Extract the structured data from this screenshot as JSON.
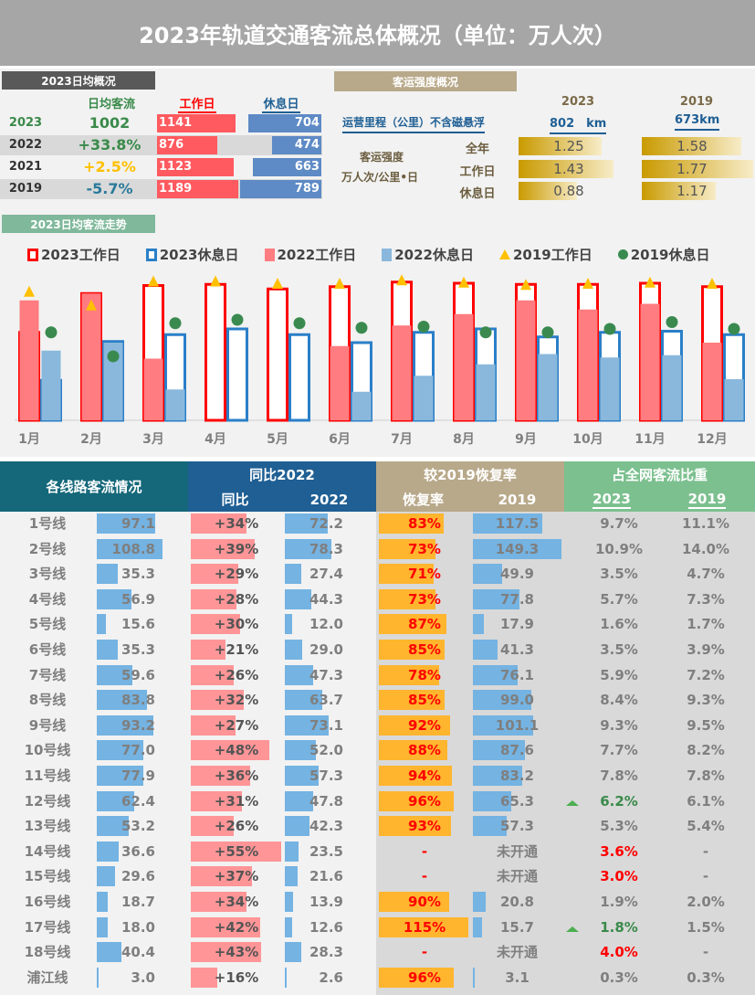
{
  "title": "2023年轨道交通客流总体概况（单位：万人次）",
  "daily": {
    "tag": "2023日均概况",
    "col_avg": "日均客流",
    "col_work": "工作日",
    "col_rest": "休息日",
    "rows": [
      {
        "year": "2023",
        "value": "1002",
        "color": "#3a8a4a",
        "work": 1141,
        "rest": 704
      },
      {
        "year": "2022",
        "value": "+33.8%",
        "color": "#3a8a4a",
        "work": 876,
        "rest": 474
      },
      {
        "year": "2021",
        "value": "+2.5%",
        "color": "#ffc000",
        "work": 1123,
        "rest": 663
      },
      {
        "year": "2019",
        "value": "-5.7%",
        "color": "#2a7a9a",
        "work": 1189,
        "rest": 789
      }
    ]
  },
  "intensity": {
    "tag": "客运强度概况",
    "y2023": "2023",
    "y2019": "2019",
    "mileage_label": "运营里程（公里）不含磁悬浮",
    "mileage_2023": "802　km",
    "mileage_2019": "673km",
    "label1": "客运强度",
    "label2": "万人次/公里•日",
    "rows": [
      {
        "name": "全年",
        "v2023": "1.25",
        "v2019": "1.58"
      },
      {
        "name": "工作日",
        "v2023": "1.43",
        "v2019": "1.77"
      },
      {
        "name": "休息日",
        "v2023": "0.88",
        "v2019": "1.17"
      }
    ]
  },
  "trend_tag": "2023日均客流走势",
  "chart_data": {
    "type": "bar",
    "categories": [
      "1月",
      "2月",
      "3月",
      "4月",
      "5月",
      "6月",
      "7月",
      "8月",
      "9月",
      "10月",
      "11月",
      "12月"
    ],
    "legend": [
      "2023工作日",
      "2023休息日",
      "2022工作日",
      "2022休息日",
      "2019工作日",
      "2019休息日"
    ],
    "legend_position": "top",
    "series": [
      {
        "name": "2023工作日",
        "values": [
          770,
          1110,
          1180,
          1190,
          1150,
          1170,
          1210,
          1200,
          1190,
          1190,
          1200,
          1170
        ]
      },
      {
        "name": "2023休息日",
        "values": [
          350,
          690,
          750,
          800,
          750,
          680,
          770,
          800,
          730,
          770,
          780,
          750
        ]
      },
      {
        "name": "2022工作日",
        "values": [
          1050,
          1110,
          540,
          0,
          0,
          650,
          830,
          930,
          1050,
          970,
          1020,
          680
        ]
      },
      {
        "name": "2022休息日",
        "values": [
          610,
          680,
          270,
          0,
          0,
          250,
          390,
          490,
          580,
          550,
          570,
          360
        ]
      },
      {
        "name": "2019工作日",
        "values": [
          1130,
          1010,
          1220,
          1220,
          1200,
          1200,
          1230,
          1210,
          1190,
          1200,
          1210,
          1200
        ]
      },
      {
        "name": "2019休息日",
        "values": [
          770,
          560,
          850,
          880,
          850,
          810,
          820,
          770,
          770,
          800,
          860,
          800
        ]
      }
    ],
    "colors": {
      "w2023": "#ff0000",
      "r2023": "#2a7fc8",
      "w2022": "#ff7c80",
      "r2022": "#8ab8dc",
      "w2019": "#ffc000",
      "r2019": "#3a8a50"
    }
  },
  "table": {
    "h_lines": "各线路客流情况",
    "h_yoy": "同比2022",
    "h_yoy_sub": "同比",
    "h_2022": "2022",
    "h_rec": "较2019恢复率",
    "h_rec_sub": "恢复率",
    "h_2019": "2019",
    "h_share": "占全网客流比重",
    "h_s2023": "2023",
    "h_s2019": "2019",
    "rows": [
      {
        "line": "1号线",
        "v": 97.1,
        "yoy": "+34%",
        "yoyn": 34,
        "v22": 72.2,
        "rec": "83%",
        "recn": 83,
        "v19": "117.5",
        "v19n": 117.5,
        "s23": "9.7%",
        "s19": "11.1%"
      },
      {
        "line": "2号线",
        "v": 108.8,
        "yoy": "+39%",
        "yoyn": 39,
        "v22": 78.3,
        "rec": "73%",
        "recn": 73,
        "v19": "149.3",
        "v19n": 149.3,
        "s23": "10.9%",
        "s19": "14.0%"
      },
      {
        "line": "3号线",
        "v": 35.3,
        "yoy": "+29%",
        "yoyn": 29,
        "v22": 27.4,
        "rec": "71%",
        "recn": 71,
        "v19": "49.9",
        "v19n": 49.9,
        "s23": "3.5%",
        "s19": "4.7%"
      },
      {
        "line": "4号线",
        "v": 56.9,
        "yoy": "+28%",
        "yoyn": 28,
        "v22": 44.3,
        "rec": "73%",
        "recn": 73,
        "v19": "77.8",
        "v19n": 77.8,
        "s23": "5.7%",
        "s19": "7.3%"
      },
      {
        "line": "5号线",
        "v": 15.6,
        "yoy": "+30%",
        "yoyn": 30,
        "v22": 12.0,
        "rec": "87%",
        "recn": 87,
        "v19": "17.9",
        "v19n": 17.9,
        "s23": "1.6%",
        "s19": "1.7%"
      },
      {
        "line": "6号线",
        "v": 35.3,
        "yoy": "+21%",
        "yoyn": 21,
        "v22": 29.0,
        "rec": "85%",
        "recn": 85,
        "v19": "41.3",
        "v19n": 41.3,
        "s23": "3.5%",
        "s19": "3.9%"
      },
      {
        "line": "7号线",
        "v": 59.6,
        "yoy": "+26%",
        "yoyn": 26,
        "v22": 47.3,
        "rec": "78%",
        "recn": 78,
        "v19": "76.1",
        "v19n": 76.1,
        "s23": "5.9%",
        "s19": "7.2%"
      },
      {
        "line": "8号线",
        "v": 83.8,
        "yoy": "+32%",
        "yoyn": 32,
        "v22": 63.7,
        "rec": "85%",
        "recn": 85,
        "v19": "99.0",
        "v19n": 99.0,
        "s23": "8.4%",
        "s19": "9.3%"
      },
      {
        "line": "9号线",
        "v": 93.2,
        "yoy": "+27%",
        "yoyn": 27,
        "v22": 73.1,
        "rec": "92%",
        "recn": 92,
        "v19": "101.1",
        "v19n": 101.1,
        "s23": "9.3%",
        "s19": "9.5%"
      },
      {
        "line": "10号线",
        "v": 77.0,
        "yoy": "+48%",
        "yoyn": 48,
        "v22": 52.0,
        "rec": "88%",
        "recn": 88,
        "v19": "87.6",
        "v19n": 87.6,
        "s23": "7.7%",
        "s19": "8.2%"
      },
      {
        "line": "11号线",
        "v": 77.9,
        "yoy": "+36%",
        "yoyn": 36,
        "v22": 57.3,
        "rec": "94%",
        "recn": 94,
        "v19": "83.2",
        "v19n": 83.2,
        "s23": "7.8%",
        "s19": "7.8%"
      },
      {
        "line": "12号线",
        "v": 62.4,
        "yoy": "+31%",
        "yoyn": 31,
        "v22": 47.8,
        "rec": "96%",
        "recn": 96,
        "v19": "65.3",
        "v19n": 65.3,
        "s23": "6.2%",
        "s19": "6.1%",
        "s23style": "up"
      },
      {
        "line": "13号线",
        "v": 53.2,
        "yoy": "+26%",
        "yoyn": 26,
        "v22": 42.3,
        "rec": "93%",
        "recn": 93,
        "v19": "57.3",
        "v19n": 57.3,
        "s23": "5.3%",
        "s19": "5.4%"
      },
      {
        "line": "14号线",
        "v": 36.6,
        "yoy": "+55%",
        "yoyn": 55,
        "v22": 23.5,
        "rec": "-",
        "recn": 0,
        "v19": "未开通",
        "v19n": 0,
        "s23": "3.6%",
        "s19": "-",
        "s23style": "new"
      },
      {
        "line": "15号线",
        "v": 29.6,
        "yoy": "+37%",
        "yoyn": 37,
        "v22": 21.6,
        "rec": "-",
        "recn": 0,
        "v19": "未开通",
        "v19n": 0,
        "s23": "3.0%",
        "s19": "-",
        "s23style": "new"
      },
      {
        "line": "16号线",
        "v": 18.7,
        "yoy": "+34%",
        "yoyn": 34,
        "v22": 13.9,
        "rec": "90%",
        "recn": 90,
        "v19": "20.8",
        "v19n": 20.8,
        "s23": "1.9%",
        "s19": "2.0%"
      },
      {
        "line": "17号线",
        "v": 18.0,
        "yoy": "+42%",
        "yoyn": 42,
        "v22": 12.6,
        "rec": "115%",
        "recn": 115,
        "v19": "15.7",
        "v19n": 15.7,
        "s23": "1.8%",
        "s19": "1.5%",
        "s23style": "up"
      },
      {
        "line": "18号线",
        "v": 40.4,
        "yoy": "+43%",
        "yoyn": 43,
        "v22": 28.3,
        "rec": "-",
        "recn": 0,
        "v19": "未开通",
        "v19n": 0,
        "s23": "4.0%",
        "s19": "-",
        "s23style": "new"
      },
      {
        "line": "浦江线",
        "v": 3.0,
        "yoy": "+16%",
        "yoyn": 16,
        "v22": 2.6,
        "rec": "96%",
        "recn": 96,
        "v19": "3.1",
        "v19n": 3.1,
        "s23": "0.3%",
        "s19": "0.3%"
      }
    ]
  }
}
